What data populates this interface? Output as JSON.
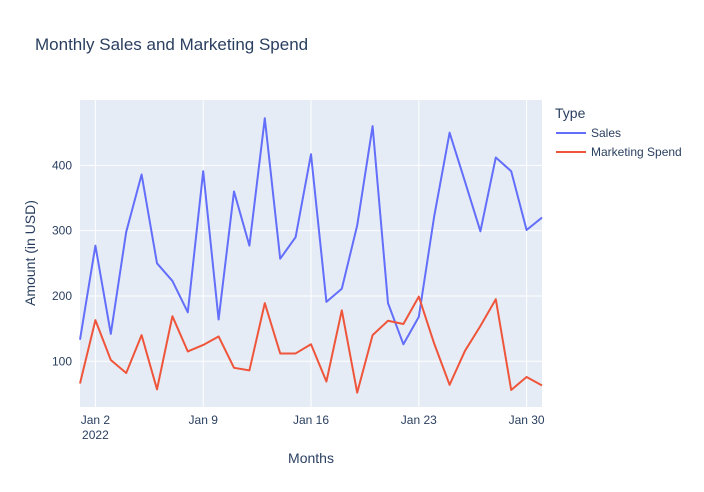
{
  "chart_data": {
    "type": "line",
    "title": "Monthly Sales and Marketing Spend",
    "xlabel": "Months",
    "ylabel": "Amount (in USD)",
    "legend_title": "Type",
    "legend_position": "top-right",
    "grid": true,
    "x": [
      "2022-01-01",
      "2022-01-02",
      "2022-01-03",
      "2022-01-04",
      "2022-01-05",
      "2022-01-06",
      "2022-01-07",
      "2022-01-08",
      "2022-01-09",
      "2022-01-10",
      "2022-01-11",
      "2022-01-12",
      "2022-01-13",
      "2022-01-14",
      "2022-01-15",
      "2022-01-16",
      "2022-01-17",
      "2022-01-18",
      "2022-01-19",
      "2022-01-20",
      "2022-01-21",
      "2022-01-22",
      "2022-01-23",
      "2022-01-24",
      "2022-01-25",
      "2022-01-26",
      "2022-01-27",
      "2022-01-28",
      "2022-01-29",
      "2022-01-30",
      "2022-01-31"
    ],
    "xlim": [
      "2022-01-01",
      "2022-01-31"
    ],
    "x_ticks": [
      {
        "date": "2022-01-02",
        "label": "Jan 2",
        "sublabel": "2022"
      },
      {
        "date": "2022-01-09",
        "label": "Jan 9",
        "sublabel": ""
      },
      {
        "date": "2022-01-16",
        "label": "Jan 16",
        "sublabel": ""
      },
      {
        "date": "2022-01-23",
        "label": "Jan 23",
        "sublabel": ""
      },
      {
        "date": "2022-01-30",
        "label": "Jan 30",
        "sublabel": ""
      }
    ],
    "y_ticks": [
      100,
      200,
      300,
      400
    ],
    "ylim": [
      30,
      500
    ],
    "series": [
      {
        "name": "Sales",
        "color": "#636efa",
        "values": [
          133,
          277,
          142,
          298,
          386,
          250,
          223,
          175,
          391,
          164,
          360,
          277,
          472,
          257,
          290,
          417,
          191,
          211,
          308,
          460,
          189,
          126,
          168,
          322,
          450,
          375,
          299,
          412,
          391,
          301,
          320
        ]
      },
      {
        "name": "Marketing Spend",
        "color": "#ef553b",
        "values": [
          66,
          163,
          102,
          82,
          140,
          57,
          169,
          115,
          125,
          138,
          90,
          86,
          189,
          112,
          112,
          126,
          69,
          178,
          52,
          140,
          162,
          157,
          199,
          127,
          64,
          116,
          154,
          195,
          56,
          76,
          63
        ]
      }
    ]
  }
}
